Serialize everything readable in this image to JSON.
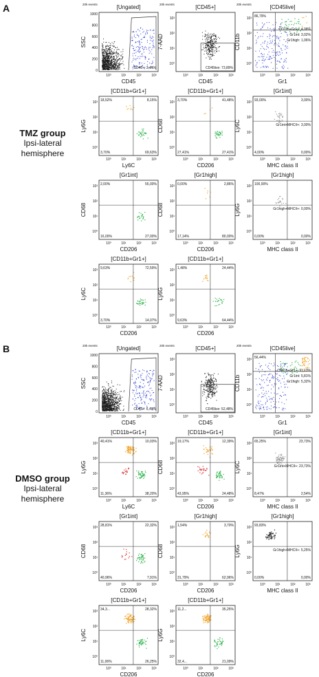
{
  "figure": {
    "letters": [
      "A",
      "B"
    ],
    "groups": [
      {
        "name": "TMZ group",
        "sub1": "Ipsi-lateral",
        "sub2": "hemisphere"
      },
      {
        "name": "DMSO group",
        "sub1": "Ipsi-lateral",
        "sub2": "hemisphere"
      }
    ],
    "event_note": "20k events"
  },
  "colors": {
    "black": "#1a1a1a",
    "blue": "#2233cc",
    "green": "#2db34a",
    "orange": "#f0a020",
    "red": "#d83030",
    "gray": "#999999"
  },
  "chart_data": [
    {
      "type": "scatter",
      "panel": "A",
      "row": 0,
      "col": 0,
      "style": "ungated",
      "title": "[Ungated]",
      "xlabel": "CD45",
      "ylabel": "SSC",
      "yticks": [
        "1000",
        "800",
        "600",
        "400",
        "200",
        "0"
      ],
      "quadrants": [],
      "gate_label": "CD45+: 3,44%"
    },
    {
      "type": "scatter",
      "panel": "A",
      "row": 0,
      "col": 1,
      "style": "cd45",
      "title": "[CD45+]",
      "xlabel": "CD45",
      "ylabel": "7-AAD",
      "quadrants": [],
      "gate_label": "CD45live: 73,89%"
    },
    {
      "type": "scatter",
      "panel": "A",
      "row": 0,
      "col": 2,
      "style": "cd45live",
      "title": "[CD45live]",
      "xlabel": "Gr1",
      "ylabel": "CD11b",
      "quadrants": [
        "86,79%",
        "",
        "",
        ""
      ],
      "gate_stats": [
        "CD11b+Gr1+: 4,08%",
        "Gr1int: 3,02%",
        "Gr1high: 1,06%"
      ]
    },
    {
      "type": "scatter",
      "panel": "A",
      "row": 1,
      "col": 0,
      "title": "[CD11b+Gr1+]",
      "xlabel": "Ly6C",
      "ylabel": "Ly6G",
      "quadrants": [
        "18,52%",
        "8,15%",
        "3,70%",
        "69,63%"
      ],
      "dots": {
        "orange": 8,
        "green": 30
      }
    },
    {
      "type": "scatter",
      "panel": "A",
      "row": 1,
      "col": 1,
      "title": "[CD11b+Gr1+]",
      "xlabel": "CD206",
      "ylabel": "CD68",
      "quadrants": [
        "3,70%",
        "41,48%",
        "27,41%",
        "27,41%"
      ],
      "dots": {
        "green": 30,
        "orange": 4
      }
    },
    {
      "type": "scatter",
      "panel": "A",
      "row": 1,
      "col": 2,
      "title": "[Gr1int]",
      "xlabel": "MHC class II",
      "ylabel": "Ly6C",
      "quadrants": [
        "93,00%",
        "3,00%",
        "4,00%",
        "0,00%"
      ],
      "dots": {
        "gray": 30
      },
      "gate_label": "Gr1int+MHCII+: 3,00%"
    },
    {
      "type": "scatter",
      "panel": "A",
      "row": 2,
      "col": 0,
      "title": "[Gr1int]",
      "xlabel": "CD206",
      "ylabel": "CD68",
      "quadrants": [
        "2,00%",
        "55,00%",
        "16,00%",
        "27,00%"
      ],
      "dots": {
        "green": 22
      }
    },
    {
      "type": "scatter",
      "panel": "A",
      "row": 2,
      "col": 1,
      "title": "[Gr1high]",
      "xlabel": "CD206",
      "ylabel": "CD68",
      "quadrants": [
        "0,00%",
        "2,86%",
        "17,14%",
        "80,00%"
      ],
      "dots": {
        "orange": 6
      }
    },
    {
      "type": "scatter",
      "panel": "A",
      "row": 2,
      "col": 2,
      "title": "[Gr1high]",
      "xlabel": "MHC class II",
      "ylabel": "Ly6G",
      "quadrants": [
        "100,00%",
        "",
        "0,00%",
        "0,00%"
      ],
      "dots": {
        "gray": 20
      },
      "gate_label": "Gr1high+MHCII+: 0,00%"
    },
    {
      "type": "scatter",
      "panel": "A",
      "row": 3,
      "col": 0,
      "title": "[CD11b+Gr1+]",
      "xlabel": "CD206",
      "ylabel": "Ly6C",
      "quadrants": [
        "9,63%",
        "72,59%",
        "3,70%",
        "14,07%"
      ],
      "dots": {
        "green": 30,
        "orange": 10
      }
    },
    {
      "type": "scatter",
      "panel": "A",
      "row": 3,
      "col": 1,
      "title": "[CD11b+Gr1+]",
      "xlabel": "CD206",
      "ylabel": "Ly6G",
      "quadrants": [
        "1,48%",
        "24,44%",
        "9,63%",
        "64,44%"
      ],
      "dots": {
        "orange": 12,
        "green": 22
      }
    },
    {
      "type": "scatter",
      "panel": "B",
      "row": 0,
      "col": 0,
      "style": "ungated",
      "title": "[Ungated]",
      "xlabel": "CD45",
      "ylabel": "SSC",
      "yticks": [
        "1000",
        "800",
        "600",
        "400",
        "200",
        "0"
      ],
      "quadrants": [],
      "gate_label": "CD45+: 6,49%"
    },
    {
      "type": "scatter",
      "panel": "B",
      "row": 0,
      "col": 1,
      "style": "cd45",
      "title": "[CD45+]",
      "xlabel": "CD45",
      "ylabel": "7-AAD",
      "quadrants": [],
      "gate_label": "CD45live: 52,48%"
    },
    {
      "type": "scatter",
      "panel": "B",
      "row": 0,
      "col": 2,
      "style": "cd45live",
      "title": "[CD45live]",
      "xlabel": "Gr1",
      "ylabel": "CD11b",
      "quadrants": [
        "56,44%",
        "",
        "",
        ""
      ],
      "gate_stats": [
        "CD11b+Gr1+: 11,13%",
        "Gr1int: 5,81%",
        "Gr1high: 5,32%"
      ]
    },
    {
      "type": "scatter",
      "panel": "B",
      "row": 1,
      "col": 0,
      "title": "[CD11b+Gr1+]",
      "xlabel": "Ly6C",
      "ylabel": "Ly6G",
      "quadrants": [
        "40,41%",
        "10,03%",
        "11,36%",
        "38,20%"
      ],
      "dots": {
        "orange": 70,
        "green": 45,
        "red": 20
      }
    },
    {
      "type": "scatter",
      "panel": "B",
      "row": 1,
      "col": 1,
      "title": "[CD11b+Gr1+]",
      "xlabel": "CD206",
      "ylabel": "CD68",
      "quadrants": [
        "19,17%",
        "12,39%",
        "43,95%",
        "24,48%"
      ],
      "dots": {
        "green": 40,
        "orange": 30,
        "red": 25
      }
    },
    {
      "type": "scatter",
      "panel": "B",
      "row": 1,
      "col": 2,
      "title": "[Gr1int]",
      "xlabel": "MHC class II",
      "ylabel": "Ly6C",
      "quadrants": [
        "65,25%",
        "23,73%",
        "8,47%",
        "2,54%"
      ],
      "dots": {
        "gray": 60
      },
      "gate_label": "Gr1int+MHCII+: 23,73%"
    },
    {
      "type": "scatter",
      "panel": "B",
      "row": 2,
      "col": 0,
      "title": "[Gr1int]",
      "xlabel": "CD206",
      "ylabel": "CD68",
      "quadrants": [
        "28,81%",
        "22,32%",
        "40,96%",
        "7,91%"
      ],
      "dots": {
        "green": 40,
        "red": 15
      }
    },
    {
      "type": "scatter",
      "panel": "B",
      "row": 2,
      "col": 1,
      "title": "[Gr1high]",
      "xlabel": "CD206",
      "ylabel": "CD68",
      "quadrants": [
        "1,54%",
        "3,70%",
        "31,79%",
        "62,96%"
      ],
      "dots": {
        "orange": 18
      }
    },
    {
      "type": "scatter",
      "panel": "B",
      "row": 2,
      "col": 2,
      "title": "[Gr1high]",
      "xlabel": "MHC class II",
      "ylabel": "Ly6G",
      "quadrants": [
        "93,83%",
        "",
        "0,00%",
        "0,00%"
      ],
      "dots": {
        "black": 55
      },
      "gate_label": "Gr1high+MHCII+: 5,25%"
    },
    {
      "type": "scatter",
      "panel": "B",
      "row": 3,
      "col": 0,
      "title": "[CD11b+Gr1+]",
      "xlabel": "CD206",
      "ylabel": "Ly6C",
      "quadrants": [
        "34,3...",
        "28,32%",
        "11,06%",
        "26,25%"
      ],
      "dots": {
        "orange": 70,
        "green": 40
      }
    },
    {
      "type": "scatter",
      "panel": "B",
      "row": 3,
      "col": 1,
      "title": "[CD11b+Gr1+]",
      "xlabel": "CD206",
      "ylabel": "Ly6G",
      "quadrants": [
        "11,2...",
        "35,25%",
        "32,4...",
        "21,09%"
      ],
      "dots": {
        "orange": 70,
        "green": 40
      }
    }
  ]
}
